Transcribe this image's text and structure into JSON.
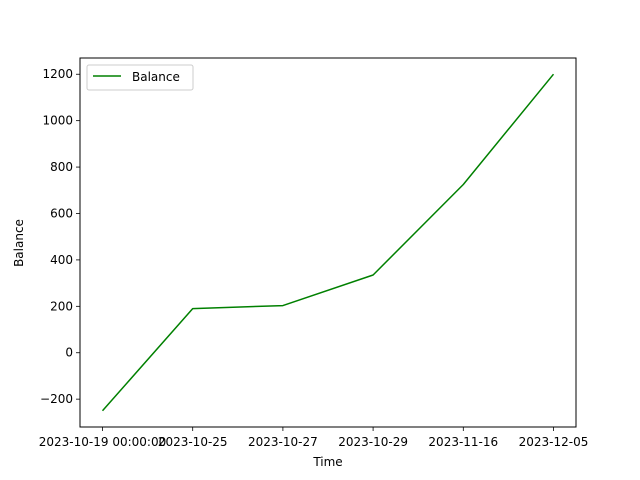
{
  "chart_data": {
    "type": "line",
    "title": "",
    "xlabel": "Time",
    "ylabel": "Balance",
    "categories": [
      "2023-10-19 00:00:00",
      "2023-10-25",
      "2023-10-27",
      "2023-10-29",
      "2023-11-16",
      "2023-12-05"
    ],
    "series": [
      {
        "name": "Balance",
        "color": "#008000",
        "values": [
          -250,
          190,
          203,
          335,
          725,
          1200
        ]
      }
    ],
    "ylim": [
      -320,
      1270
    ],
    "yticks": [
      -200,
      0,
      200,
      400,
      600,
      800,
      1000,
      1200
    ],
    "ytick_labels": [
      "−200",
      "0",
      "200",
      "400",
      "600",
      "800",
      "1000",
      "1200"
    ],
    "legend": {
      "position": "upper-left"
    },
    "grid": false
  }
}
